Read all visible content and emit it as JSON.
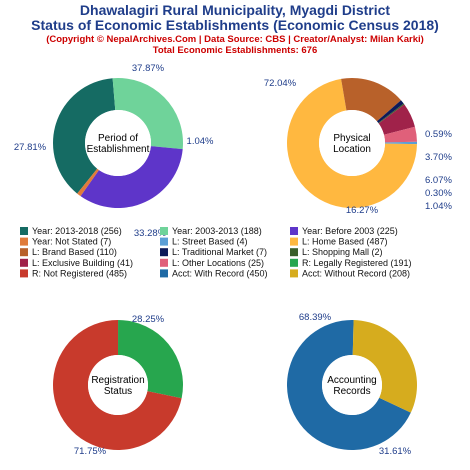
{
  "header": {
    "title_line1": "Dhawalagiri Rural Municipality, Myagdi District",
    "title_line2": "Status of Economic Establishments (Economic Census 2018)",
    "copyright": "(Copyright © NepalArchives.Com | Data Source: CBS | Creator/Analyst: Milan Karki)",
    "total": "Total Economic Establishments: 676"
  },
  "chart_data": [
    {
      "type": "pie",
      "title": "Period of Establishment",
      "center_label": [
        "Period of",
        "Establishment"
      ],
      "slices": [
        {
          "label": "Year: 2013-2018",
          "value": 256,
          "pct": "37.87%",
          "color": "#156b63"
        },
        {
          "label": "Year: 2003-2013",
          "value": 188,
          "pct": "27.81%",
          "color": "#6fd39a"
        },
        {
          "label": "Year: Before 2003",
          "value": 225,
          "pct": "33.28%",
          "color": "#5e35c9"
        },
        {
          "label": "Year: Not Stated",
          "value": 7,
          "pct": "1.04%",
          "color": "#e07b3a"
        }
      ]
    },
    {
      "type": "pie",
      "title": "Physical Location",
      "center_label": [
        "Physical",
        "Location"
      ],
      "slices": [
        {
          "label": "L: Street Based",
          "value": 4,
          "pct": "0.59%",
          "color": "#5b9fd6"
        },
        {
          "label": "L: Home Based",
          "value": 487,
          "pct": "72.04%",
          "color": "#ffb840"
        },
        {
          "label": "L: Brand Based",
          "value": 110,
          "pct": "16.27%",
          "color": "#b8612a"
        },
        {
          "label": "L: Traditional Market",
          "value": 7,
          "pct": "1.04%",
          "color": "#0c1a5a"
        },
        {
          "label": "L: Shopping Mall",
          "value": 2,
          "pct": "0.30%",
          "color": "#3a5f2a"
        },
        {
          "label": "L: Exclusive Building",
          "value": 41,
          "pct": "6.07%",
          "color": "#a0224a"
        },
        {
          "label": "L: Other Locations",
          "value": 25,
          "pct": "3.70%",
          "color": "#e0607a"
        }
      ]
    },
    {
      "type": "pie",
      "title": "Registration Status",
      "center_label": [
        "Registration",
        "Status"
      ],
      "slices": [
        {
          "label": "R: Legally Registered",
          "value": 191,
          "pct": "28.25%",
          "color": "#27a64e"
        },
        {
          "label": "R: Not Registered",
          "value": 485,
          "pct": "71.75%",
          "color": "#c83a2c"
        }
      ]
    },
    {
      "type": "pie",
      "title": "Accounting Records",
      "center_label": [
        "Accounting",
        "Records"
      ],
      "slices": [
        {
          "label": "Acct: With Record",
          "value": 450,
          "pct": "68.39%",
          "color": "#1f6aa5"
        },
        {
          "label": "Acct: Without Record",
          "value": 208,
          "pct": "31.61%",
          "color": "#d6ac1e"
        }
      ]
    }
  ],
  "legend": [
    {
      "text": "Year: 2013-2018 (256)",
      "color": "#156b63"
    },
    {
      "text": "Year: 2003-2013 (188)",
      "color": "#6fd39a"
    },
    {
      "text": "Year: Before 2003 (225)",
      "color": "#5e35c9"
    },
    {
      "text": "Year: Not Stated (7)",
      "color": "#e07b3a"
    },
    {
      "text": "L: Street Based (4)",
      "color": "#5b9fd6"
    },
    {
      "text": "L: Home Based (487)",
      "color": "#ffb840"
    },
    {
      "text": "L: Brand Based (110)",
      "color": "#b8612a"
    },
    {
      "text": "L: Traditional Market (7)",
      "color": "#0c1a5a"
    },
    {
      "text": "L: Shopping Mall (2)",
      "color": "#3a5f2a"
    },
    {
      "text": "L: Exclusive Building (41)",
      "color": "#a0224a"
    },
    {
      "text": "L: Other Locations (25)",
      "color": "#e0607a"
    },
    {
      "text": "R: Legally Registered (191)",
      "color": "#27a64e"
    },
    {
      "text": "R: Not Registered (485)",
      "color": "#c83a2c"
    },
    {
      "text": "Acct: With Record (450)",
      "color": "#1f6aa5"
    },
    {
      "text": "Acct: Without Record (208)",
      "color": "#d6ac1e"
    }
  ]
}
